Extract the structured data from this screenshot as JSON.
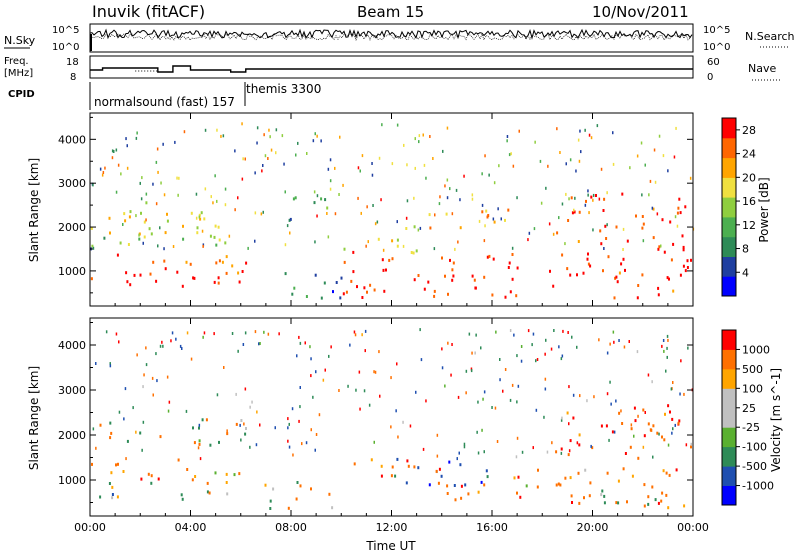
{
  "header": {
    "station": "Inuvik (fitACF)",
    "beam": "Beam 15",
    "date": "10/Nov/2011"
  },
  "top_panels": {
    "nsky_label": "N.Sky",
    "nsearch_label": "N.Search",
    "nsky_ticks": [
      "10^5",
      "10^0"
    ],
    "nsearch_ticks": [
      "10^5",
      "10^0"
    ],
    "freq_label_1": "Freq.",
    "freq_label_2": "[MHz]",
    "freq_ticks": [
      "18",
      "8"
    ],
    "nave_label": "Nave",
    "nave_ticks": [
      "60",
      "0"
    ],
    "cpid_label": "CPID",
    "cpid_segments": [
      {
        "label": "normalsound (fast) 157",
        "start_hour": 0,
        "end_hour": 6.5
      },
      {
        "label": "themis 3300",
        "start_hour": 6.5,
        "end_hour": 24
      }
    ]
  },
  "colors": {
    "power_scale": [
      "#0000ff",
      "#1f3fa0",
      "#2e8b57",
      "#4caf50",
      "#8fce3f",
      "#f0e040",
      "#ffa500",
      "#ff6600",
      "#ff0000"
    ],
    "velocity_scale": [
      "#0000ff",
      "#1f4fb0",
      "#2e8b57",
      "#5ab030",
      "#c0c0c0",
      "#c0c0c0",
      "#ffa500",
      "#ff7000",
      "#ff0000"
    ]
  },
  "chart_data": [
    {
      "type": "heatmap",
      "name": "power",
      "xlabel": "Time UT",
      "ylabel": "Slant Range [km]",
      "x_ticks": [
        "00:00",
        "04:00",
        "08:00",
        "12:00",
        "16:00",
        "20:00",
        "00:00"
      ],
      "xlim": [
        0,
        24
      ],
      "ylim": [
        200,
        4600
      ],
      "y_ticks": [
        1000,
        2000,
        3000,
        4000
      ],
      "colorbar_label": "Power [dB]",
      "colorbar_ticks": [
        4,
        8,
        12,
        16,
        20,
        24,
        28
      ],
      "colorbar_range": [
        0,
        30
      ],
      "regions": [
        {
          "x0": 0.0,
          "x1": 6.2,
          "y0": 600,
          "y1": 1500,
          "value": 27
        },
        {
          "x0": 0.0,
          "x1": 6.2,
          "y0": 1500,
          "y1": 1800,
          "value": 14
        },
        {
          "x0": 0.0,
          "x1": 6.2,
          "y0": 1800,
          "y1": 2600,
          "value": 18
        },
        {
          "x0": 6.8,
          "x1": 10.0,
          "y0": 400,
          "y1": 1000,
          "value": 6
        },
        {
          "x0": 7.5,
          "x1": 9.5,
          "y0": 2100,
          "y1": 2800,
          "value": 10
        },
        {
          "x0": 10.0,
          "x1": 24.0,
          "y0": 400,
          "y1": 1500,
          "value": 28
        },
        {
          "x0": 10.0,
          "x1": 13.5,
          "y0": 1400,
          "y1": 1800,
          "value": 18
        },
        {
          "x0": 18.5,
          "x1": 24.0,
          "y0": 1500,
          "y1": 2800,
          "value": 26
        },
        {
          "x0": 12.5,
          "x1": 17.0,
          "y0": 2000,
          "y1": 2500,
          "value": 20
        }
      ]
    },
    {
      "type": "heatmap",
      "name": "velocity",
      "xlabel": "Time UT",
      "ylabel": "Slant Range [km]",
      "x_ticks": [
        "00:00",
        "04:00",
        "08:00",
        "12:00",
        "16:00",
        "20:00",
        "00:00"
      ],
      "xlim": [
        0,
        24
      ],
      "ylim": [
        200,
        4600
      ],
      "y_ticks": [
        1000,
        2000,
        3000,
        4000
      ],
      "colorbar_label": "Velocity [m s^-1]",
      "colorbar_ticks": [
        "1000",
        "500",
        "100",
        "25",
        "-25",
        "-100",
        "-500",
        "-1000"
      ],
      "regions": [
        {
          "x0": 0.0,
          "x1": 6.2,
          "y0": 1000,
          "y1": 1500,
          "value": -300
        },
        {
          "x0": 0.0,
          "x1": 6.2,
          "y0": 600,
          "y1": 1000,
          "value": 200
        },
        {
          "x0": 0.0,
          "x1": 6.2,
          "y0": 1800,
          "y1": 2400,
          "value": 0
        },
        {
          "x0": 6.8,
          "x1": 10.0,
          "y0": 400,
          "y1": 1000,
          "value": 0
        },
        {
          "x0": 10.0,
          "x1": 14.0,
          "y0": 900,
          "y1": 1500,
          "value": -300
        },
        {
          "x0": 12.0,
          "x1": 16.0,
          "y0": 900,
          "y1": 1500,
          "value": 800
        },
        {
          "x0": 14.0,
          "x1": 24.0,
          "y0": 500,
          "y1": 1300,
          "value": -300
        },
        {
          "x0": 18.5,
          "x1": 24.0,
          "y0": 1500,
          "y1": 2700,
          "value": -400
        },
        {
          "x0": 20.0,
          "x1": 24.0,
          "y0": 400,
          "y1": 900,
          "value": 150
        }
      ]
    }
  ]
}
